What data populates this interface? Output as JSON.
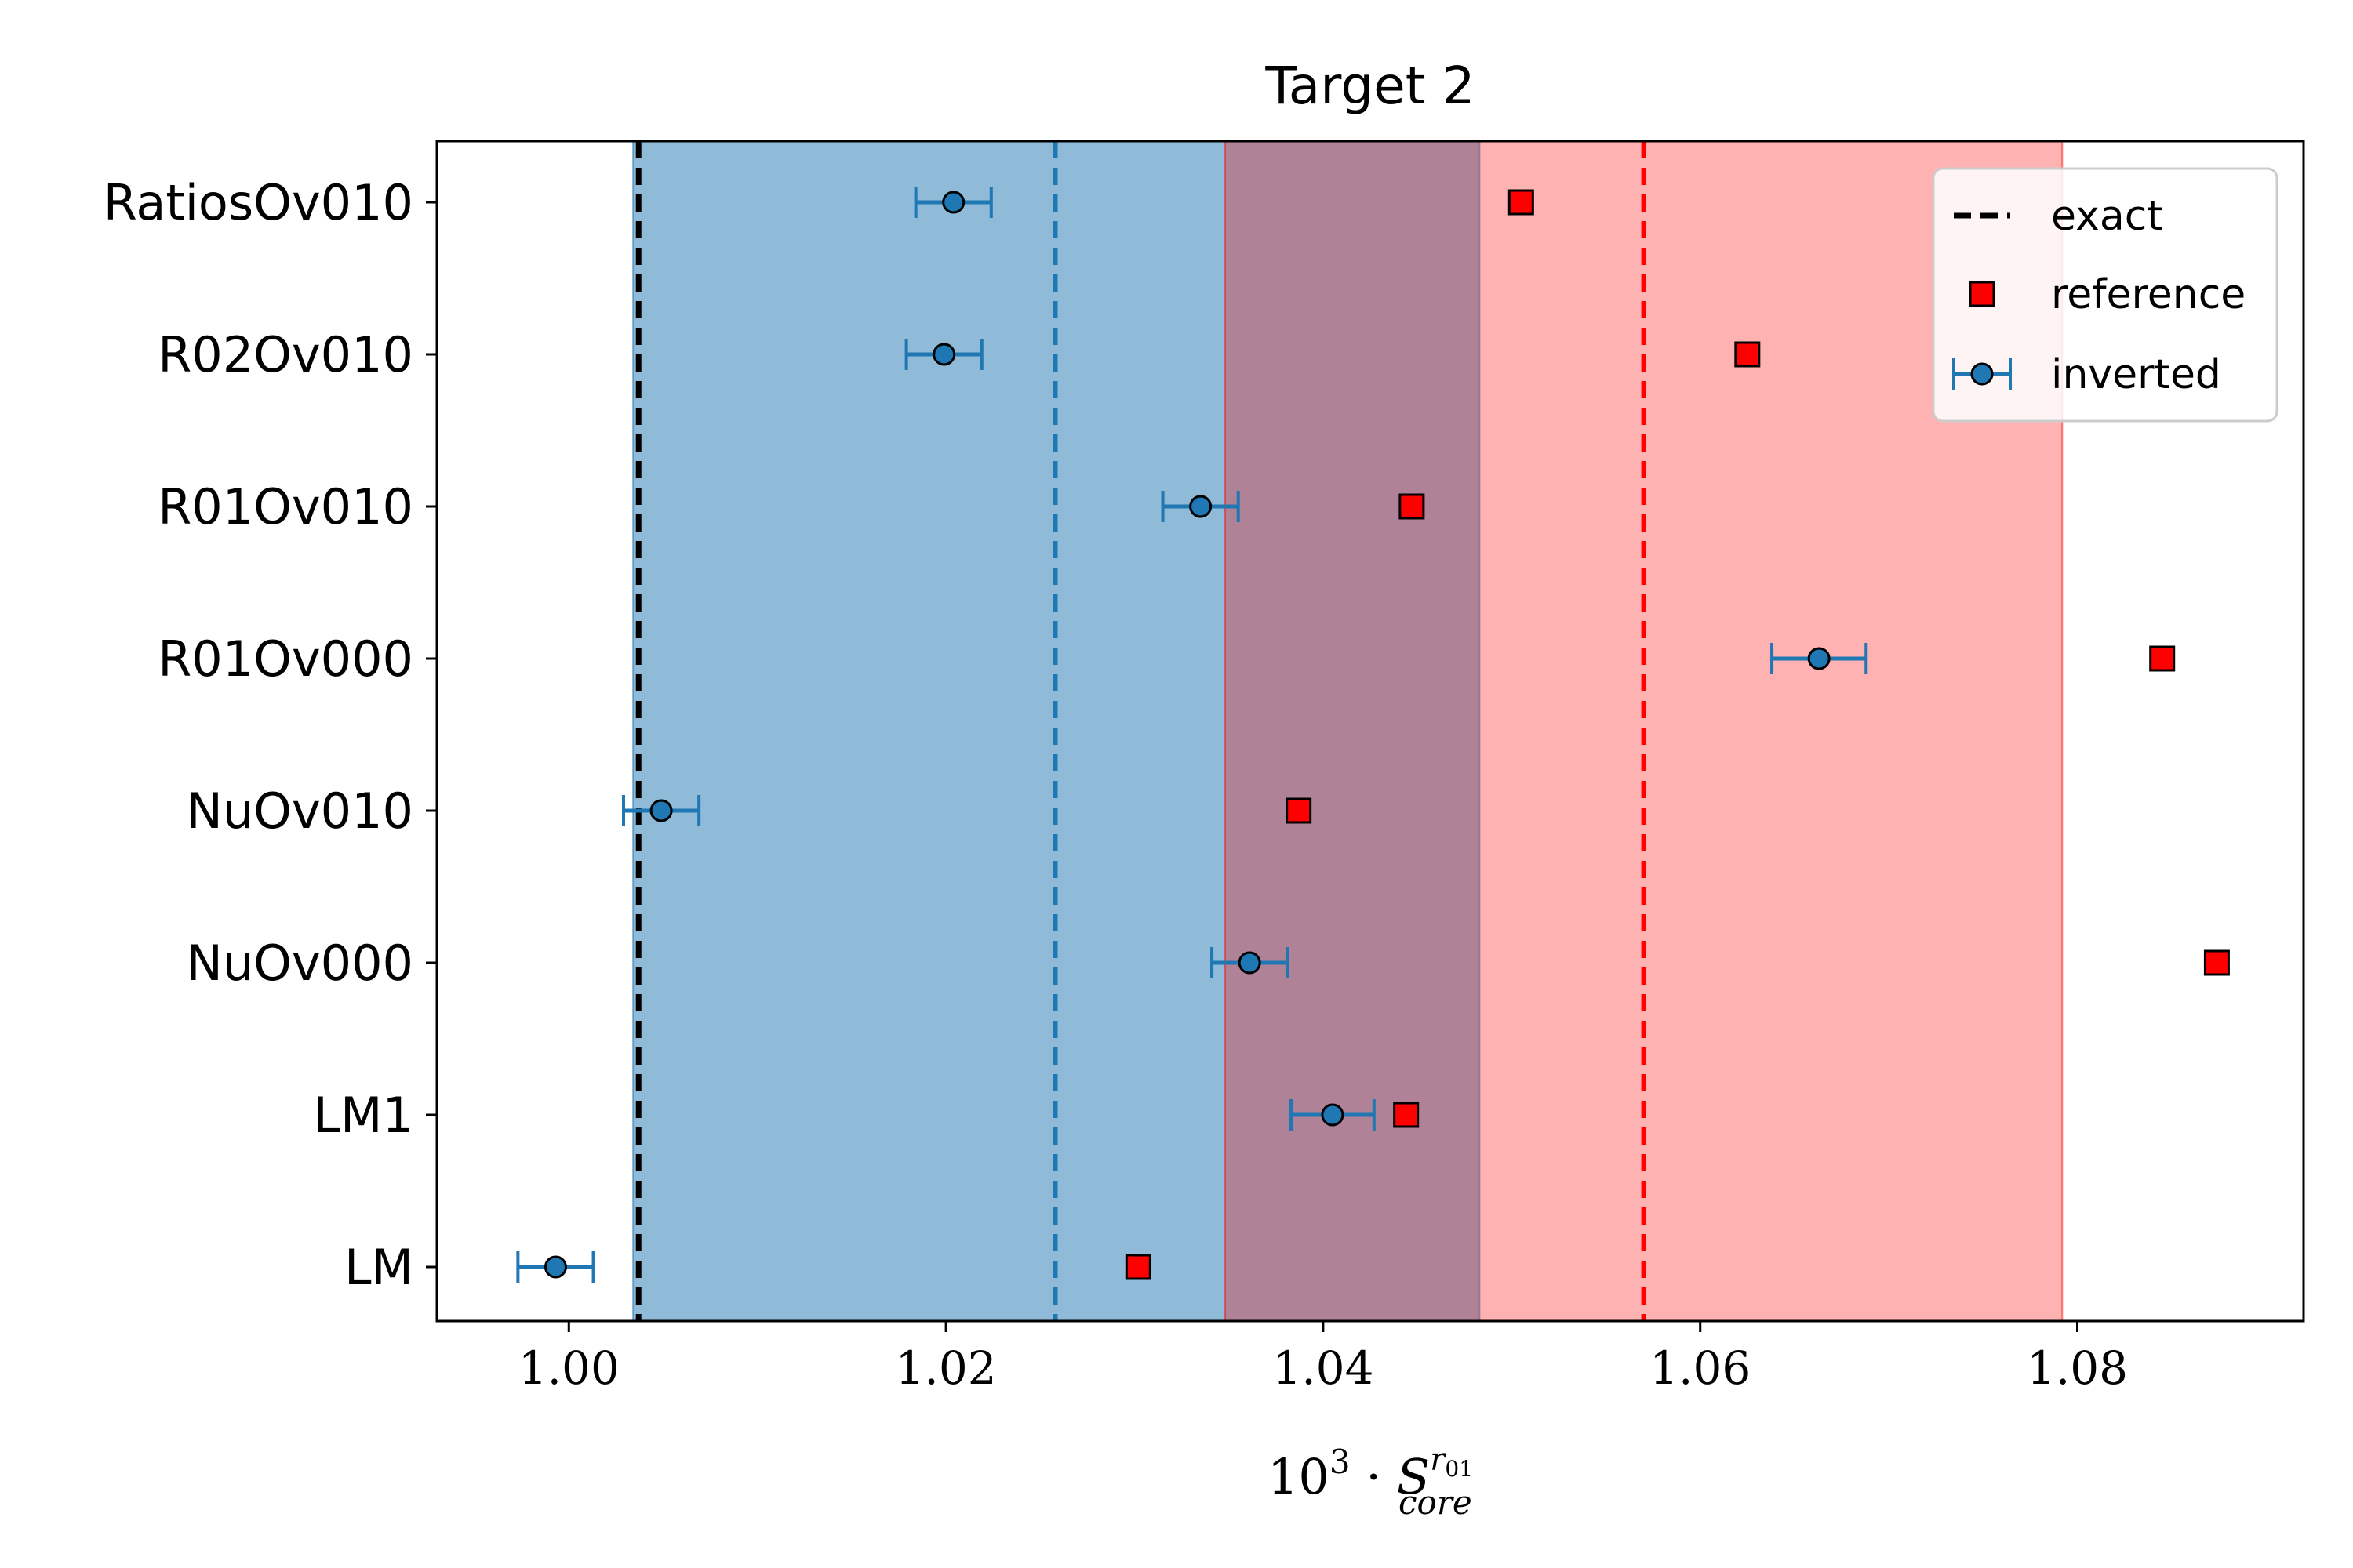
{
  "chart_data": {
    "type": "scatter",
    "title": "Target 2",
    "xlabel": {
      "base": "10",
      "exp": "3",
      "dot": "·",
      "symbol": "S",
      "sup": "r",
      "sup_sub": "01",
      "sub": "core"
    },
    "xlim": [
      0.993,
      1.092
    ],
    "xticks": [
      1.0,
      1.02,
      1.04,
      1.06,
      1.08
    ],
    "xtick_labels": [
      "1.00",
      "1.02",
      "1.04",
      "1.06",
      "1.08"
    ],
    "categories": [
      "RatiosOv010",
      "R02Ov010",
      "R01Ov010",
      "R01Ov000",
      "NuOv010",
      "NuOv000",
      "LM1",
      "LM"
    ],
    "series": [
      {
        "name": "reference",
        "marker": "square",
        "color": "#ff0000",
        "values": [
          1.0505,
          1.0625,
          1.0447,
          1.0845,
          1.0387,
          1.0874,
          1.0444,
          1.0302
        ]
      },
      {
        "name": "inverted",
        "marker": "circle",
        "color": "#1f77b4",
        "values": [
          1.0204,
          1.0199,
          1.0335,
          1.0663,
          1.0049,
          1.0361,
          1.0405,
          0.9993
        ],
        "xerr": [
          0.002,
          0.002,
          0.002,
          0.0025,
          0.002,
          0.002,
          0.0022,
          0.002
        ]
      }
    ],
    "exact": {
      "name": "exact",
      "value": 1.0037,
      "color": "#000000"
    },
    "bands": [
      {
        "color": "#1f77b4",
        "lo": 1.0034,
        "hi": 1.0483,
        "mid": 1.0258
      },
      {
        "color": "#ff0000",
        "lo": 1.0348,
        "hi": 1.0792,
        "mid": 1.057
      }
    ],
    "legend_position": "top-right",
    "grid": false
  }
}
